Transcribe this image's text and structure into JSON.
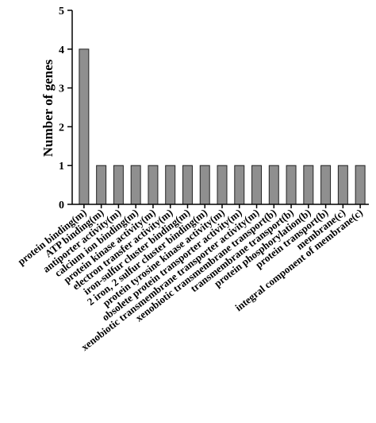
{
  "chart_data": {
    "type": "bar",
    "categories": [
      "protein binding(m)",
      "ATP binding(m)",
      "antiporter activity(m)",
      "calcium ion binding(m)",
      "protein kinase activity(m)",
      "electron transfer activity(m)",
      "iron-sulfur cluster binding(m)",
      "2 iron, 2 sulfur cluster binding(m)",
      "protein tyrosine kinase activity(m)",
      "obsolete protein transporter activity(m)",
      "xenobiotic transmembrane transporter activity(m)",
      "xenobiotic transmembrane transport(b)",
      "transmembrane transport(b)",
      "protein phosphorylation(b)",
      "protein transport(b)",
      "membrane(c)",
      "integral component of membrane(c)"
    ],
    "values": [
      4,
      1,
      1,
      1,
      1,
      1,
      1,
      1,
      1,
      1,
      1,
      1,
      1,
      1,
      1,
      1,
      1
    ],
    "title": "",
    "xlabel": "",
    "ylabel": "Number of genes",
    "ylim": [
      0,
      5
    ],
    "yticks": [
      "0",
      "1",
      "2",
      "3",
      "4",
      "5"
    ],
    "colors": {
      "bar": "#8f8f8f",
      "edge": "#222222"
    }
  }
}
